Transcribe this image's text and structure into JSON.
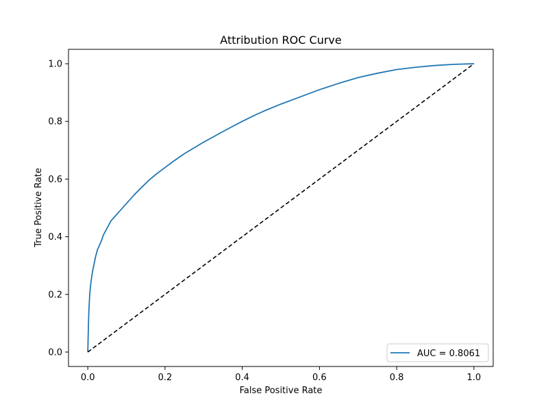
{
  "chart_data": {
    "type": "line",
    "title": "Attribution ROC Curve",
    "xlabel": "False Positive Rate",
    "ylabel": "True Positive Rate",
    "xlim": [
      -0.05,
      1.05
    ],
    "ylim": [
      -0.05,
      1.05
    ],
    "xticks": [
      0.0,
      0.2,
      0.4,
      0.6,
      0.8,
      1.0
    ],
    "yticks": [
      0.0,
      0.2,
      0.4,
      0.6,
      0.8,
      1.0
    ],
    "xtick_labels": [
      "0.0",
      "0.2",
      "0.4",
      "0.6",
      "0.8",
      "1.0"
    ],
    "ytick_labels": [
      "0.0",
      "0.2",
      "0.4",
      "0.6",
      "0.8",
      "1.0"
    ],
    "grid": false,
    "legend_position": "lower-right",
    "series": [
      {
        "name": "AUC = 0.8061",
        "color": "#1f77b4",
        "style": "solid",
        "x": [
          0.0,
          0.001,
          0.002,
          0.003,
          0.005,
          0.007,
          0.01,
          0.013,
          0.017,
          0.02,
          0.025,
          0.03,
          0.035,
          0.04,
          0.05,
          0.06,
          0.07,
          0.08,
          0.1,
          0.12,
          0.14,
          0.16,
          0.18,
          0.2,
          0.22,
          0.25,
          0.28,
          0.3,
          0.33,
          0.36,
          0.4,
          0.43,
          0.46,
          0.5,
          0.55,
          0.6,
          0.65,
          0.7,
          0.75,
          0.8,
          0.85,
          0.9,
          0.95,
          1.0
        ],
        "y": [
          0.0,
          0.06,
          0.11,
          0.15,
          0.2,
          0.23,
          0.26,
          0.285,
          0.31,
          0.33,
          0.355,
          0.37,
          0.385,
          0.405,
          0.43,
          0.455,
          0.47,
          0.485,
          0.515,
          0.545,
          0.572,
          0.598,
          0.62,
          0.64,
          0.66,
          0.688,
          0.712,
          0.728,
          0.75,
          0.772,
          0.8,
          0.82,
          0.838,
          0.86,
          0.885,
          0.91,
          0.932,
          0.952,
          0.967,
          0.98,
          0.988,
          0.994,
          0.998,
          1.0
        ]
      },
      {
        "name": "",
        "color": "#000000",
        "style": "dashed",
        "x": [
          0.0,
          1.0
        ],
        "y": [
          0.0,
          1.0
        ]
      }
    ],
    "legend": [
      {
        "label": "AUC = 0.8061",
        "color": "#1f77b4"
      }
    ]
  }
}
